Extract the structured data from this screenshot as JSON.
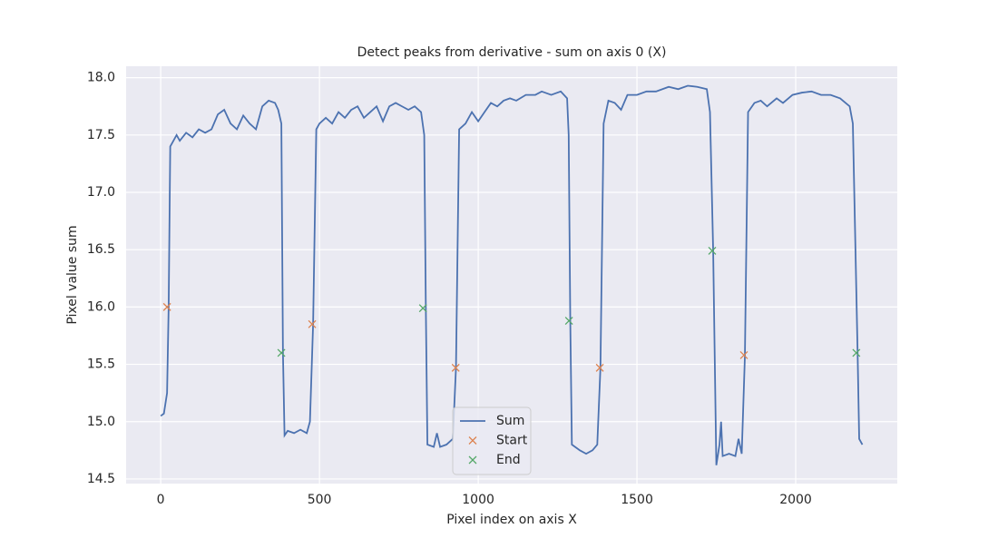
{
  "chart_data": {
    "type": "line",
    "title": "Detect peaks from derivative - sum on axis 0 (X)",
    "x_label": "Pixel index on axis X",
    "y_label": "Pixel value sum",
    "xlim": [
      -109,
      2320
    ],
    "ylim": [
      14.46,
      18.1
    ],
    "xticks": [
      0,
      500,
      1000,
      1500,
      2000
    ],
    "yticks": [
      {
        "value": 14.5,
        "label": "14.5"
      },
      {
        "value": 15,
        "label": "15.0"
      },
      {
        "value": 15.5,
        "label": "15.5"
      },
      {
        "value": 16,
        "label": "16.0"
      },
      {
        "value": 16.5,
        "label": "16.5"
      },
      {
        "value": 17,
        "label": "17.0"
      },
      {
        "value": 17.5,
        "label": "17.5"
      },
      {
        "value": 18,
        "label": "18.0"
      }
    ],
    "grid": true,
    "legend": "lower center",
    "series": [
      {
        "name": "Sum",
        "type": "line",
        "color": "#4c72b0",
        "x": [
          0,
          10,
          20,
          25,
          30,
          40,
          50,
          60,
          80,
          100,
          120,
          140,
          160,
          180,
          200,
          220,
          240,
          260,
          280,
          300,
          320,
          340,
          360,
          370,
          380,
          385,
          390,
          400,
          420,
          440,
          460,
          470,
          480,
          490,
          500,
          520,
          540,
          560,
          580,
          600,
          620,
          640,
          660,
          680,
          700,
          720,
          740,
          760,
          780,
          800,
          820,
          830,
          835,
          840,
          860,
          870,
          880,
          900,
          920,
          930,
          940,
          960,
          980,
          1000,
          1020,
          1040,
          1060,
          1080,
          1100,
          1120,
          1150,
          1180,
          1200,
          1230,
          1260,
          1280,
          1285,
          1290,
          1295,
          1320,
          1340,
          1360,
          1375,
          1385,
          1395,
          1410,
          1430,
          1450,
          1470,
          1500,
          1530,
          1560,
          1600,
          1630,
          1660,
          1690,
          1720,
          1730,
          1740,
          1750,
          1760,
          1765,
          1770,
          1790,
          1810,
          1820,
          1830,
          1840,
          1850,
          1870,
          1890,
          1910,
          1940,
          1960,
          1990,
          2020,
          2050,
          2080,
          2110,
          2140,
          2170,
          2180,
          2195,
          2200,
          2210
        ],
        "values": [
          15.05,
          15.07,
          15.25,
          16.0,
          17.4,
          17.45,
          17.5,
          17.45,
          17.52,
          17.48,
          17.55,
          17.52,
          17.55,
          17.68,
          17.72,
          17.6,
          17.55,
          17.67,
          17.6,
          17.55,
          17.75,
          17.8,
          17.78,
          17.72,
          17.6,
          15.6,
          14.88,
          14.92,
          14.9,
          14.93,
          14.9,
          15.0,
          15.85,
          17.55,
          17.6,
          17.65,
          17.6,
          17.7,
          17.65,
          17.72,
          17.75,
          17.65,
          17.7,
          17.75,
          17.62,
          17.75,
          17.78,
          17.75,
          17.72,
          17.75,
          17.7,
          17.5,
          16.0,
          14.8,
          14.78,
          14.9,
          14.78,
          14.8,
          14.85,
          15.47,
          17.55,
          17.6,
          17.7,
          17.62,
          17.7,
          17.78,
          17.75,
          17.8,
          17.82,
          17.8,
          17.85,
          17.85,
          17.88,
          17.85,
          17.88,
          17.82,
          17.5,
          15.88,
          14.8,
          14.75,
          14.72,
          14.75,
          14.8,
          15.47,
          17.6,
          17.8,
          17.78,
          17.72,
          17.85,
          17.85,
          17.88,
          17.88,
          17.92,
          17.9,
          17.93,
          17.92,
          17.9,
          17.7,
          16.5,
          14.62,
          14.8,
          15.0,
          14.7,
          14.72,
          14.7,
          14.85,
          14.72,
          15.57,
          17.7,
          17.78,
          17.8,
          17.75,
          17.82,
          17.78,
          17.85,
          17.87,
          17.88,
          17.85,
          17.85,
          17.82,
          17.75,
          17.6,
          15.6,
          14.85,
          14.8
        ]
      },
      {
        "name": "Start",
        "type": "scatter",
        "color": "#dd8452",
        "x": [
          20,
          477,
          929,
          1383,
          1837
        ],
        "values": [
          16.0,
          15.85,
          15.47,
          15.47,
          15.58
        ]
      },
      {
        "name": "End",
        "type": "scatter",
        "color": "#55a868",
        "x": [
          380,
          826,
          1286,
          1737,
          2191
        ],
        "values": [
          15.6,
          15.99,
          15.88,
          16.49,
          15.6
        ]
      }
    ]
  }
}
